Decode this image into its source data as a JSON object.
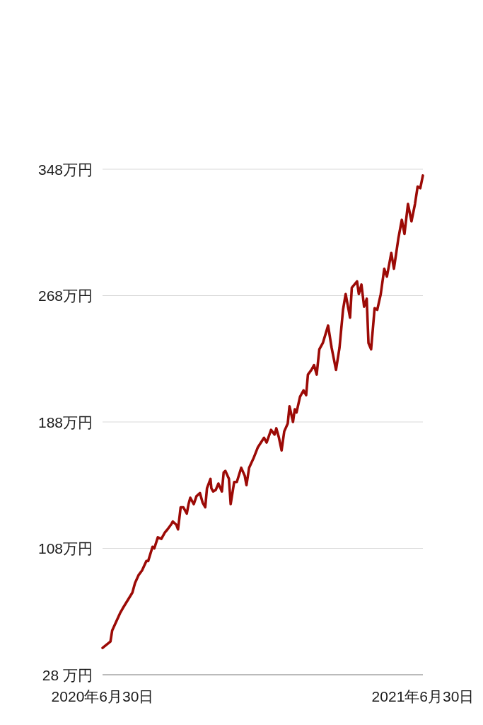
{
  "chart_data": {
    "type": "line",
    "x": [
      "2020-06-30",
      "2020-07-09",
      "2020-07-11",
      "2020-07-20",
      "2020-07-23",
      "2020-08-03",
      "2020-08-06",
      "2020-08-10",
      "2020-08-14",
      "2020-08-19",
      "2020-08-21",
      "2020-08-26",
      "2020-08-28",
      "2020-09-01",
      "2020-09-05",
      "2020-09-09",
      "2020-09-12",
      "2020-09-16",
      "2020-09-18",
      "2020-09-22",
      "2020-09-24",
      "2020-09-27",
      "2020-09-30",
      "2020-10-04",
      "2020-10-06",
      "2020-10-08",
      "2020-10-12",
      "2020-10-15",
      "2020-10-19",
      "2020-10-22",
      "2020-10-25",
      "2020-10-27",
      "2020-10-31",
      "2020-11-01",
      "2020-11-03",
      "2020-11-06",
      "2020-11-09",
      "2020-11-13",
      "2020-11-15",
      "2020-11-17",
      "2020-11-21",
      "2020-11-23",
      "2020-11-27",
      "2020-11-30",
      "2020-12-05",
      "2020-12-09",
      "2020-12-11",
      "2020-12-14",
      "2020-12-19",
      "2020-12-24",
      "2020-12-31",
      "2021-01-03",
      "2021-01-08",
      "2021-01-12",
      "2021-01-14",
      "2021-01-17",
      "2021-01-20",
      "2021-01-23",
      "2021-01-27",
      "2021-01-29",
      "2021-02-02",
      "2021-02-04",
      "2021-02-06",
      "2021-02-10",
      "2021-02-14",
      "2021-02-17",
      "2021-02-19",
      "2021-02-23",
      "2021-02-26",
      "2021-03-01",
      "2021-03-04",
      "2021-03-08",
      "2021-03-14",
      "2021-03-18",
      "2021-03-23",
      "2021-03-27",
      "2021-03-31",
      "2021-04-03",
      "2021-04-08",
      "2021-04-10",
      "2021-04-16",
      "2021-04-18",
      "2021-04-21",
      "2021-04-24",
      "2021-04-27",
      "2021-04-29",
      "2021-05-02",
      "2021-05-06",
      "2021-05-09",
      "2021-05-13",
      "2021-05-17",
      "2021-05-20",
      "2021-05-25",
      "2021-05-28",
      "2021-06-02",
      "2021-06-06",
      "2021-06-09",
      "2021-06-13",
      "2021-06-17",
      "2021-06-21",
      "2021-06-24",
      "2021-06-27",
      "2021-06-30"
    ],
    "series": [
      {
        "color": "#9c0a06",
        "values": [
          45,
          49,
          56,
          67,
          70,
          80,
          86,
          91,
          94,
          100,
          100,
          109,
          108,
          115,
          114,
          118,
          120,
          123,
          125,
          123,
          120,
          134,
          134,
          130,
          136,
          140,
          136,
          141,
          143,
          137,
          134,
          146,
          152,
          146,
          144,
          145,
          149,
          144,
          156,
          157,
          152,
          136,
          150,
          150,
          159,
          154,
          148,
          159,
          165,
          172,
          178,
          175,
          183,
          180,
          184,
          178,
          170,
          182,
          187,
          198,
          188,
          196,
          194,
          204,
          208,
          205,
          218,
          221,
          224,
          218,
          234,
          238,
          249,
          235,
          221,
          235,
          259,
          269,
          254,
          273,
          277,
          269,
          275,
          261,
          266,
          238,
          234,
          260,
          259,
          269,
          285,
          280,
          295,
          285,
          304,
          316,
          307,
          326,
          315,
          326,
          337,
          336,
          344
        ]
      }
    ],
    "xlim": [
      "2020-06-30",
      "2021-06-30"
    ],
    "xticks": [
      {
        "value": "2020-06-30",
        "label": "2020年6月30日"
      },
      {
        "value": "2021-06-30",
        "label": "2021年6月30日"
      }
    ],
    "ylim": [
      28,
      348
    ],
    "yticks": [
      {
        "value": 28,
        "label": "28 万円"
      },
      {
        "value": 108,
        "label": "108万円"
      },
      {
        "value": 188,
        "label": "188万円"
      },
      {
        "value": 268,
        "label": "268万円"
      },
      {
        "value": 348,
        "label": "348万円"
      }
    ],
    "grid": "y"
  }
}
